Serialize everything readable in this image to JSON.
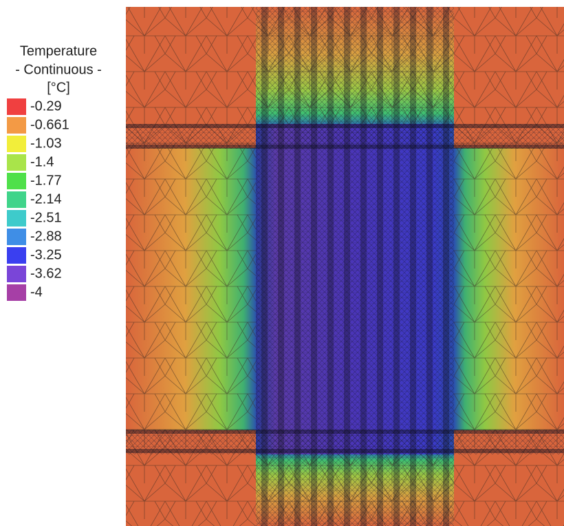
{
  "legend": {
    "title": [
      "Temperature",
      "- Continuous -",
      "[°C]"
    ],
    "entries": [
      {
        "label": "-0.29",
        "color": "#f04040"
      },
      {
        "label": "-0.661",
        "color": "#f39a45"
      },
      {
        "label": "-1.03",
        "color": "#f2ee3a"
      },
      {
        "label": "-1.4",
        "color": "#a9e44a"
      },
      {
        "label": "-1.77",
        "color": "#4fe04a"
      },
      {
        "label": "-2.14",
        "color": "#3fd48a"
      },
      {
        "label": "-2.51",
        "color": "#3ecbcb"
      },
      {
        "label": "-2.88",
        "color": "#3f8ee6"
      },
      {
        "label": "-3.25",
        "color": "#3a3ff0"
      },
      {
        "label": "-3.62",
        "color": "#7a45d8"
      },
      {
        "label": "-4",
        "color": "#a63fa6"
      }
    ]
  }
}
